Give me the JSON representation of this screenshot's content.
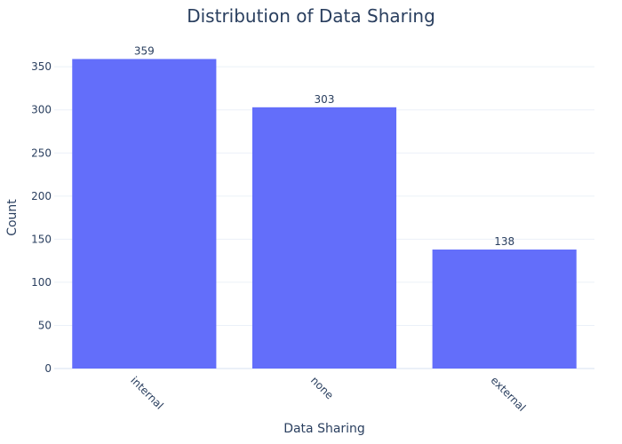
{
  "chart_data": {
    "type": "bar",
    "title": "Distribution of Data Sharing",
    "xlabel": "Data Sharing",
    "ylabel": "Count",
    "categories": [
      "internal",
      "none",
      "external"
    ],
    "values": [
      359,
      303,
      138
    ],
    "ylim": [
      0,
      378
    ],
    "yticks": [
      0,
      50,
      100,
      150,
      200,
      250,
      300,
      350
    ],
    "grid": true,
    "bar_color": "#636efa",
    "text_color": "#2a3f5f",
    "grid_color": "#ebf0f8"
  }
}
